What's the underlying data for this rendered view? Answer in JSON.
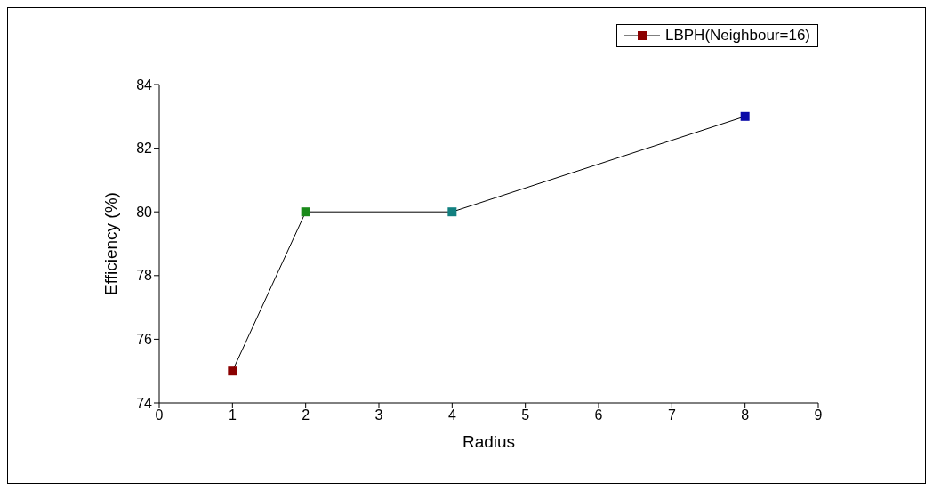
{
  "chart_data": {
    "type": "line",
    "xlabel": "Radius",
    "ylabel": "Efficiency (%)",
    "x": [
      1,
      2,
      4,
      8
    ],
    "series": [
      {
        "name": "LBPH(Neighbour=16)",
        "color": "#000000",
        "colors": [
          "#8b0000",
          "#1a8a1a",
          "#128080",
          "#0a0aa8"
        ],
        "values": [
          75,
          80,
          80,
          83
        ]
      }
    ],
    "xlim": [
      0,
      9
    ],
    "xticks": [
      0,
      1,
      2,
      3,
      4,
      5,
      6,
      7,
      8,
      9
    ],
    "ylim": [
      74,
      84
    ],
    "yticks": [
      74,
      76,
      78,
      80,
      82,
      84
    ],
    "grid": false,
    "legend": "top right",
    "marker": "square",
    "line_style": "solid"
  }
}
